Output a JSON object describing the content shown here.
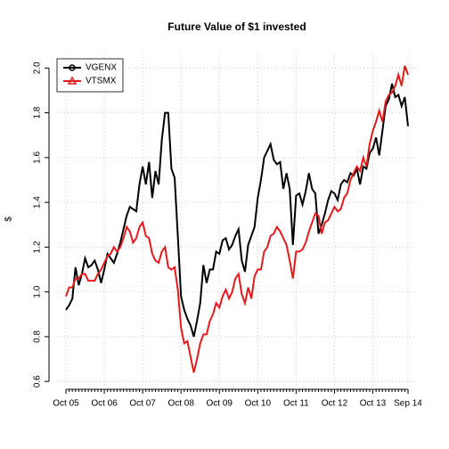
{
  "chart_data": {
    "type": "line",
    "title": "Future Value of $1 invested",
    "y_label": "$",
    "categories": [
      "Oct 05",
      null,
      null,
      null,
      null,
      null,
      null,
      null,
      null,
      null,
      null,
      null,
      "Oct 06",
      null,
      null,
      null,
      null,
      null,
      null,
      null,
      null,
      null,
      null,
      null,
      "Oct 07",
      null,
      null,
      null,
      null,
      null,
      null,
      null,
      null,
      null,
      null,
      null,
      "Oct 08",
      null,
      null,
      null,
      null,
      null,
      null,
      null,
      null,
      null,
      null,
      null,
      "Oct 09",
      null,
      null,
      null,
      null,
      null,
      null,
      null,
      null,
      null,
      null,
      null,
      "Oct 10",
      null,
      null,
      null,
      null,
      null,
      null,
      null,
      null,
      null,
      null,
      null,
      "Oct 11",
      null,
      null,
      null,
      null,
      null,
      null,
      null,
      null,
      null,
      null,
      null,
      "Oct 12",
      null,
      null,
      null,
      null,
      null,
      null,
      null,
      null,
      null,
      null,
      null,
      "Oct 13",
      null,
      null,
      null,
      null,
      null,
      null,
      null,
      null,
      null,
      null,
      "Sep 14"
    ],
    "series": [
      {
        "name": "VGENX",
        "color": "#000000",
        "marker": "circle",
        "values": [
          0.92,
          0.94,
          0.97,
          1.11,
          1.03,
          1.08,
          1.15,
          1.11,
          1.12,
          1.14,
          1.1,
          1.04,
          1.1,
          1.17,
          1.15,
          1.13,
          1.17,
          1.22,
          1.28,
          1.34,
          1.38,
          1.37,
          1.36,
          1.48,
          1.56,
          1.48,
          1.58,
          1.42,
          1.54,
          1.48,
          1.68,
          1.8,
          1.8,
          1.55,
          1.51,
          1.25,
          0.98,
          0.92,
          0.88,
          0.85,
          0.8,
          0.87,
          0.95,
          1.12,
          1.04,
          1.1,
          1.1,
          1.18,
          1.17,
          1.23,
          1.24,
          1.19,
          1.21,
          1.25,
          1.28,
          1.14,
          1.09,
          1.21,
          1.25,
          1.29,
          1.42,
          1.5,
          1.6,
          1.63,
          1.66,
          1.59,
          1.57,
          1.58,
          1.46,
          1.53,
          1.46,
          1.21,
          1.43,
          1.44,
          1.39,
          1.45,
          1.53,
          1.46,
          1.44,
          1.26,
          1.3,
          1.35,
          1.41,
          1.45,
          1.44,
          1.41,
          1.48,
          1.5,
          1.49,
          1.53,
          1.52,
          1.55,
          1.48,
          1.56,
          1.55,
          1.62,
          1.64,
          1.69,
          1.61,
          1.72,
          1.83,
          1.86,
          1.93,
          1.87,
          1.88,
          1.83,
          1.87,
          1.74
        ]
      },
      {
        "name": "VTSMX",
        "color": "#e41a1c",
        "marker": "triangle",
        "values": [
          0.98,
          1.02,
          1.02,
          1.06,
          1.06,
          1.08,
          1.08,
          1.05,
          1.05,
          1.05,
          1.08,
          1.1,
          1.13,
          1.16,
          1.17,
          1.2,
          1.18,
          1.2,
          1.24,
          1.29,
          1.27,
          1.22,
          1.24,
          1.29,
          1.31,
          1.25,
          1.24,
          1.17,
          1.14,
          1.13,
          1.18,
          1.2,
          1.11,
          1.1,
          1.11,
          1.01,
          0.84,
          0.77,
          0.78,
          0.71,
          0.64,
          0.7,
          0.77,
          0.81,
          0.81,
          0.87,
          0.9,
          0.95,
          0.93,
          0.98,
          1.01,
          0.97,
          1.0,
          1.06,
          1.08,
          0.99,
          0.95,
          1.02,
          0.97,
          1.07,
          1.1,
          1.1,
          1.18,
          1.2,
          1.25,
          1.26,
          1.29,
          1.27,
          1.24,
          1.21,
          1.14,
          1.06,
          1.18,
          1.18,
          1.19,
          1.22,
          1.27,
          1.31,
          1.35,
          1.34,
          1.26,
          1.31,
          1.32,
          1.35,
          1.38,
          1.36,
          1.37,
          1.42,
          1.44,
          1.5,
          1.53,
          1.56,
          1.54,
          1.6,
          1.56,
          1.66,
          1.72,
          1.76,
          1.81,
          1.76,
          1.85,
          1.88,
          1.89,
          1.92,
          1.97,
          1.92,
          2.01,
          1.97
        ]
      }
    ],
    "ylim": [
      0.565,
      2.065
    ],
    "yticks": [
      0.6,
      0.8,
      {
        "value": 1.0,
        "label": "1.0"
      },
      1.2,
      1.4,
      1.6,
      1.8,
      {
        "value": 2.0,
        "label": "2.0"
      }
    ],
    "grid": true,
    "legend": "topleft"
  }
}
